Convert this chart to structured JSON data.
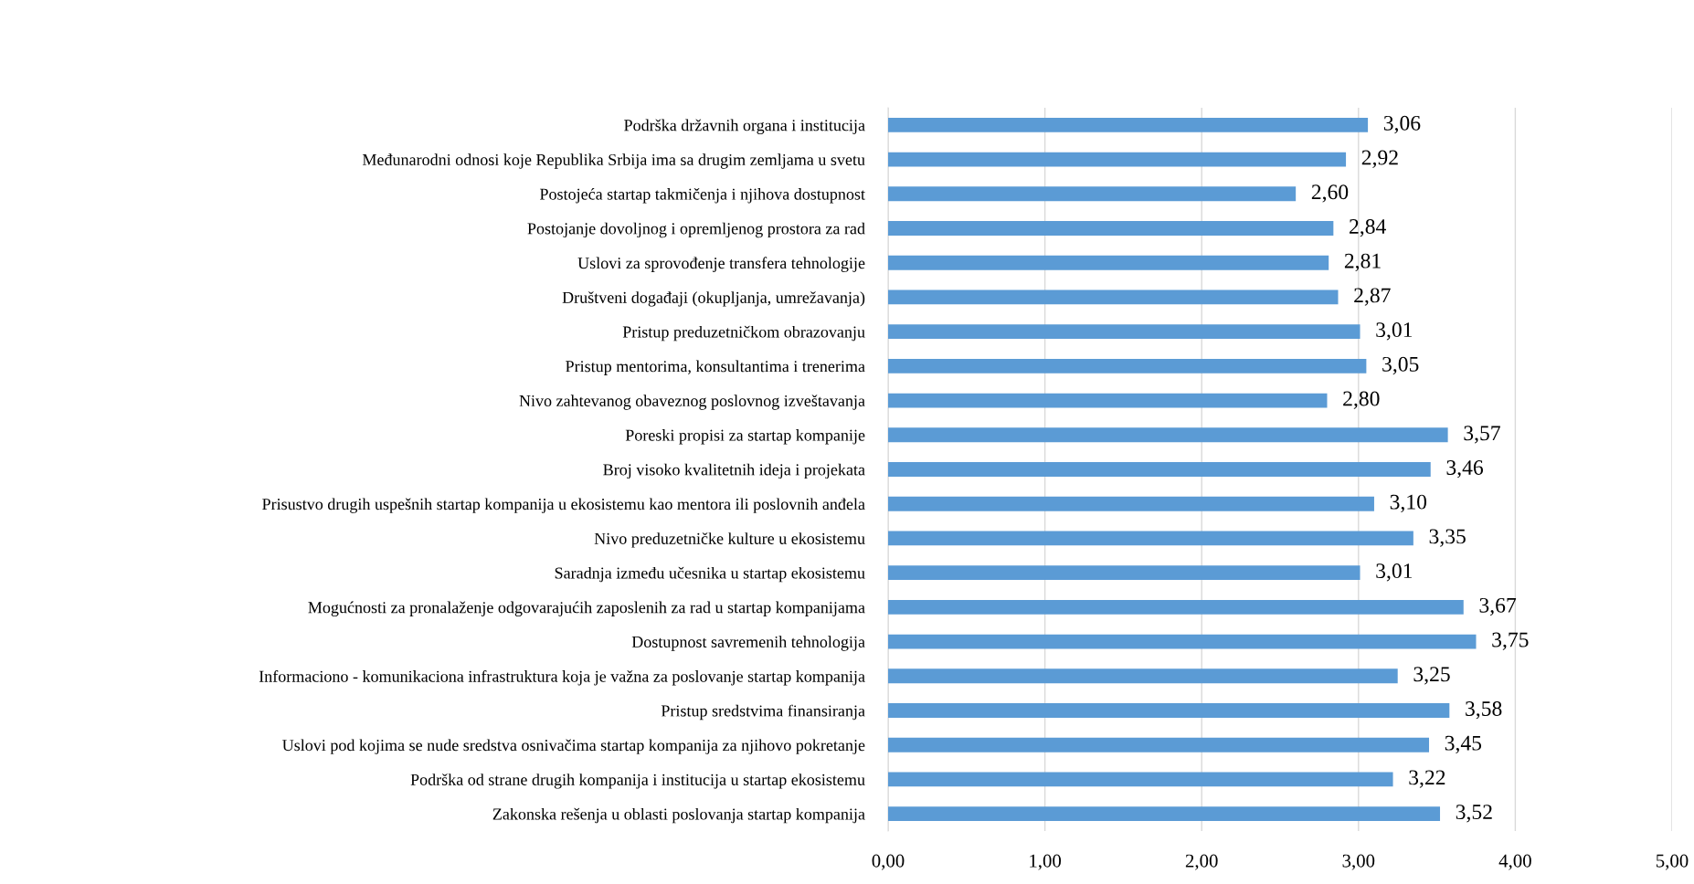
{
  "chart_data": {
    "type": "bar",
    "orientation": "horizontal",
    "categories": [
      "Podrška državnih organa i institucija",
      "Međunarodni odnosi koje Republika Srbija ima sa drugim zemljama u svetu",
      "Postojeća startap takmičenja i njihova dostupnost",
      "Postojanje dovoljnog i opremljenog prostora za rad",
      "Uslovi za sprovođenje transfera tehnologije",
      "Društveni događaji (okupljanja, umrežavanja)",
      "Pristup preduzetničkom obrazovanju",
      "Pristup mentorima, konsultantima i trenerima",
      "Nivo zahtevanog obaveznog poslovnog izveštavanja",
      "Poreski propisi za startap kompanije",
      "Broj visoko kvalitetnih ideja i projekata",
      "Prisustvo drugih uspešnih startap kompanija u ekosistemu kao mentora ili poslovnih anđela",
      "Nivo preduzetničke kulture u ekosistemu",
      "Saradnja između učesnika u startap ekosistemu",
      "Mogućnosti za pronalaženje odgovarajućih zaposlenih za rad u startap kompanijama",
      "Dostupnost savremenih tehnologija",
      "Informaciono - komunikaciona infrastruktura koja je važna za poslovanje startap kompanija",
      "Pristup sredstvima finansiranja",
      "Uslovi pod kojima se nude sredstva osnivačima startap kompanija za njihovo pokretanje",
      "Podrška od strane drugih kompanija i institucija u startap ekosistemu",
      "Zakonska rešenja u oblasti poslovanja startap kompanija"
    ],
    "values": [
      3.06,
      2.92,
      2.6,
      2.84,
      2.81,
      2.87,
      3.01,
      3.05,
      2.8,
      3.57,
      3.46,
      3.1,
      3.35,
      3.01,
      3.67,
      3.75,
      3.25,
      3.58,
      3.45,
      3.22,
      3.52
    ],
    "value_labels": [
      "3,06",
      "2,92",
      "2,60",
      "2,84",
      "2,81",
      "2,87",
      "3,01",
      "3,05",
      "2,80",
      "3,57",
      "3,46",
      "3,10",
      "3,35",
      "3,01",
      "3,67",
      "3,75",
      "3,25",
      "3,58",
      "3,45",
      "3,22",
      "3,52"
    ],
    "color": "#5b9bd5",
    "xlim": [
      0,
      5
    ],
    "xticks": [
      {
        "value": 0,
        "label": "0,00"
      },
      {
        "value": 1,
        "label": "1,00"
      },
      {
        "value": 2,
        "label": "2,00"
      },
      {
        "value": 3,
        "label": "3,00"
      },
      {
        "value": 4,
        "label": "4,00"
      },
      {
        "value": 5,
        "label": "5,00"
      }
    ],
    "grid": "x"
  }
}
